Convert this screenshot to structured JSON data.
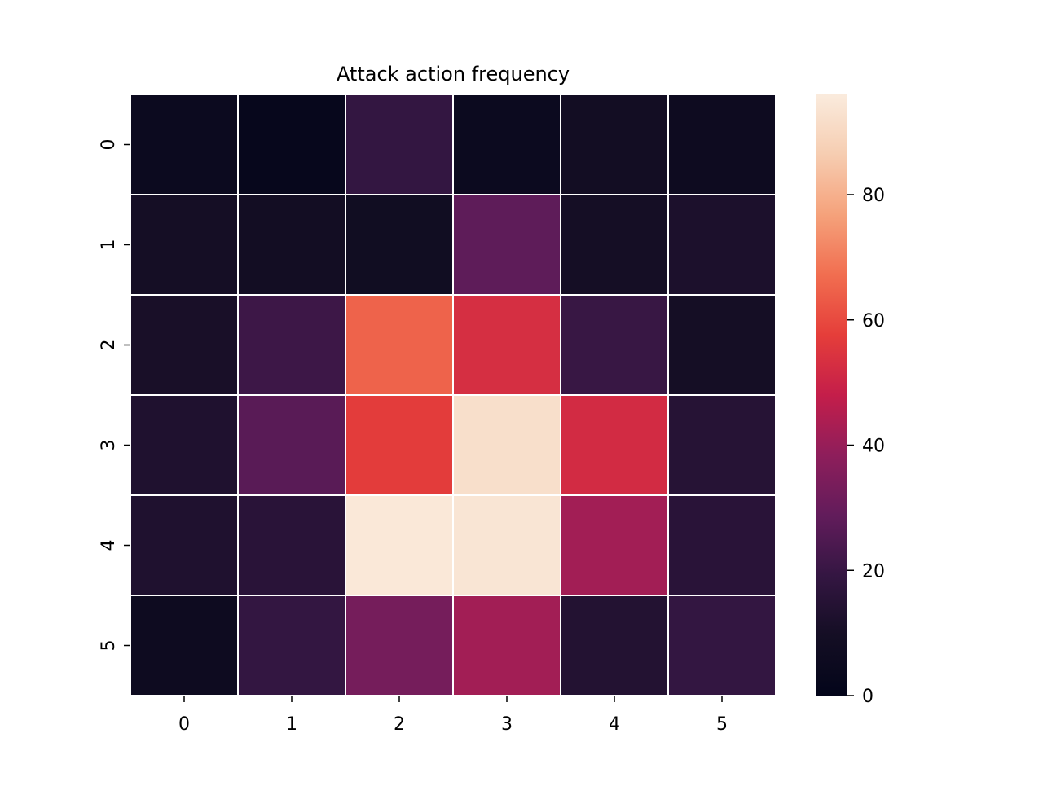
{
  "chart_data": {
    "type": "heatmap",
    "title": "Attack action frequency",
    "xlabel": "",
    "ylabel": "",
    "x_categories": [
      "0",
      "1",
      "2",
      "3",
      "4",
      "5"
    ],
    "y_categories": [
      "0",
      "1",
      "2",
      "3",
      "4",
      "5"
    ],
    "values": [
      [
        5,
        2,
        19,
        5,
        9,
        6
      ],
      [
        10,
        9,
        8,
        28,
        10,
        12
      ],
      [
        11,
        21,
        65,
        53,
        20,
        10
      ],
      [
        13,
        27,
        57,
        92,
        52,
        15
      ],
      [
        13,
        16,
        95,
        94,
        42,
        16
      ],
      [
        6,
        19,
        33,
        42,
        14,
        19
      ]
    ],
    "colorbar": {
      "min": 0,
      "max": 96,
      "ticks": [
        0,
        20,
        40,
        60,
        80
      ],
      "colormap": "rocket"
    },
    "grid_line_color": "#ffffff",
    "legend": "colorbar-right"
  }
}
